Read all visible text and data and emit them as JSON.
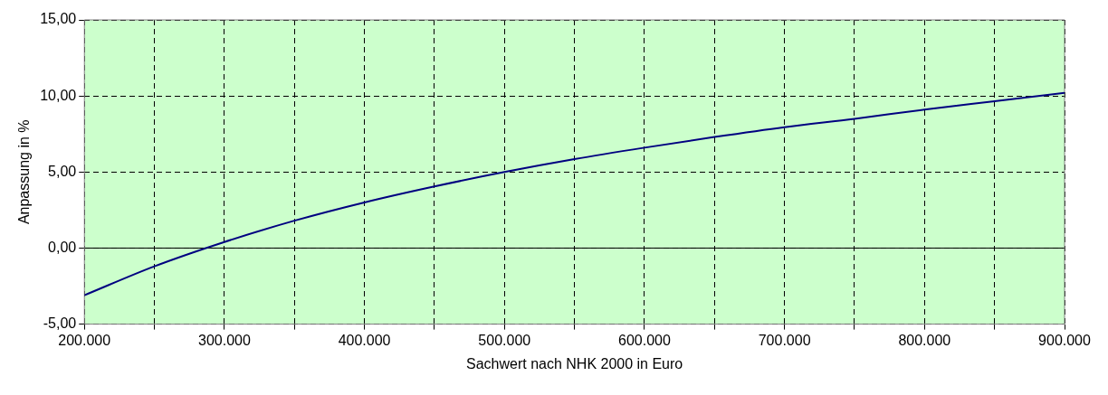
{
  "chart_data": {
    "type": "line",
    "xlabel": "Sachwert nach NHK 2000 in Euro",
    "ylabel": "Anpassung in %",
    "x": [
      200000,
      250000,
      300000,
      350000,
      400000,
      450000,
      500000,
      550000,
      600000,
      650000,
      700000,
      750000,
      800000,
      850000,
      900000
    ],
    "series": [
      {
        "color": "#000080",
        "values": [
          -3.1,
          -1.2,
          0.4,
          1.8,
          3.0,
          4.05,
          5.0,
          5.85,
          6.6,
          7.3,
          7.95,
          8.5,
          9.1,
          9.65,
          10.2
        ]
      }
    ],
    "xlim": [
      200000,
      900000
    ],
    "xticks": [
      {
        "value": 200000,
        "label": "200.000"
      },
      {
        "value": 250000,
        "label": null
      },
      {
        "value": 300000,
        "label": "300.000"
      },
      {
        "value": 350000,
        "label": null
      },
      {
        "value": 400000,
        "label": "400.000"
      },
      {
        "value": 450000,
        "label": null
      },
      {
        "value": 500000,
        "label": "500.000"
      },
      {
        "value": 550000,
        "label": null
      },
      {
        "value": 600000,
        "label": "600.000"
      },
      {
        "value": 650000,
        "label": null
      },
      {
        "value": 700000,
        "label": "700.000"
      },
      {
        "value": 750000,
        "label": null
      },
      {
        "value": 800000,
        "label": "800.000"
      },
      {
        "value": 850000,
        "label": null
      },
      {
        "value": 900000,
        "label": "900.000"
      }
    ],
    "ylim": [
      -5,
      15
    ],
    "yticks": [
      {
        "value": -5,
        "label": "-5,00"
      },
      {
        "value": 0,
        "label": "0,00"
      },
      {
        "value": 5,
        "label": "5,00"
      },
      {
        "value": 10,
        "label": "10,00"
      },
      {
        "value": 15,
        "label": "15,00"
      }
    ],
    "ref_lines": [
      {
        "axis": "y",
        "value": 0,
        "color": "#000000",
        "line_style": "solid"
      }
    ],
    "grid": true,
    "legend": false,
    "marker": "none",
    "line_style": "solid"
  }
}
